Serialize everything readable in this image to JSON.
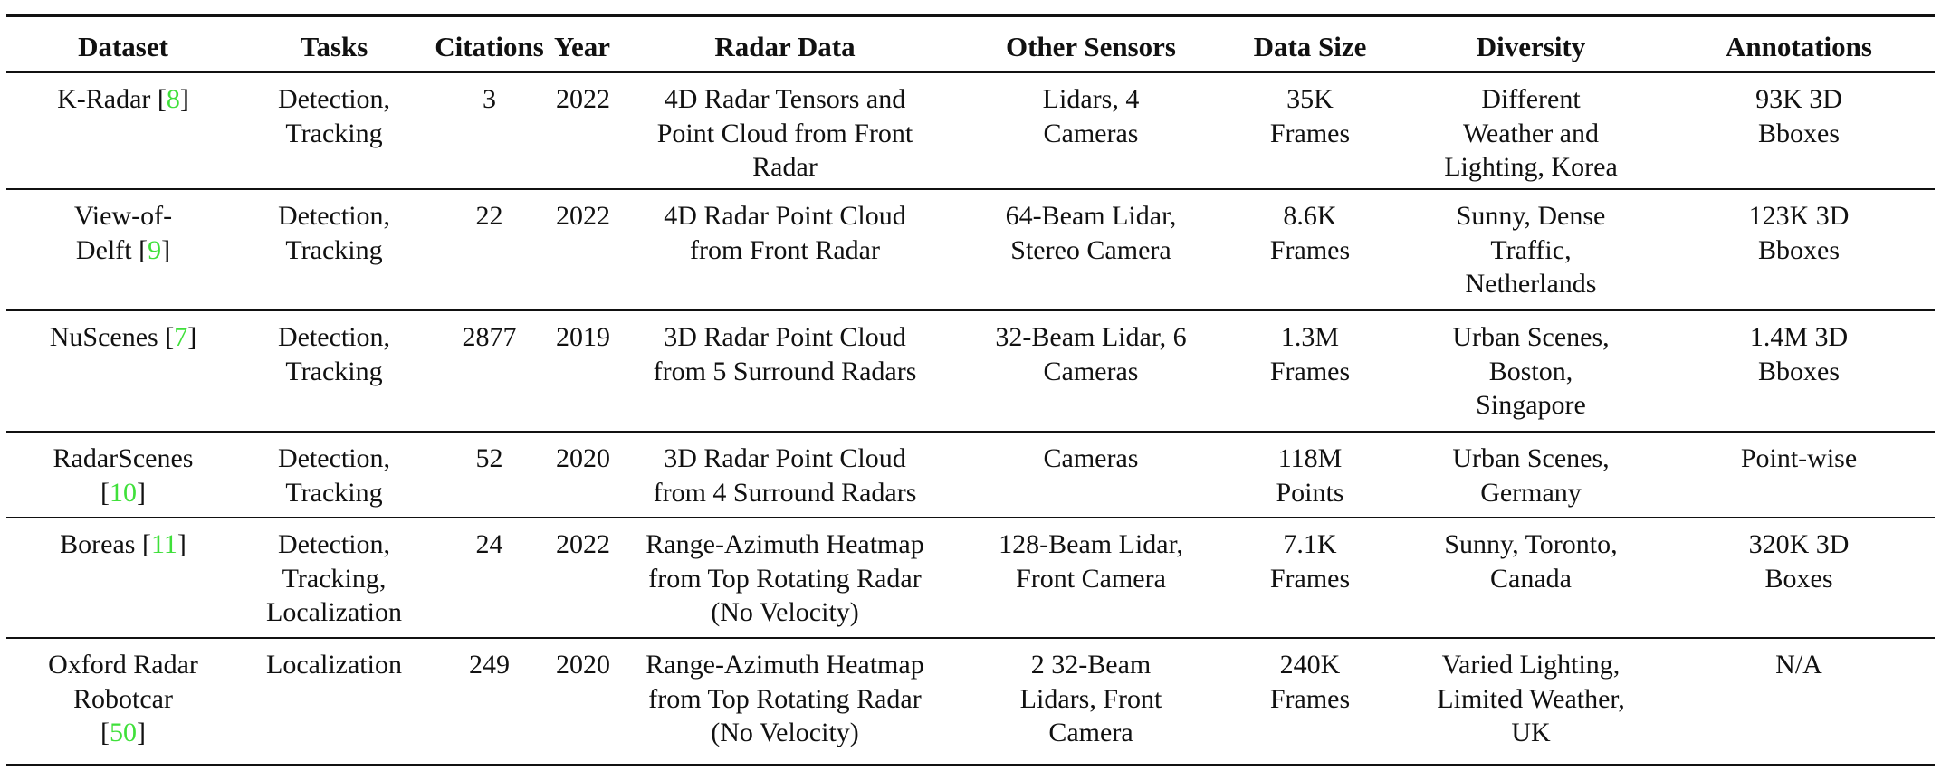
{
  "table": {
    "headers": [
      "Dataset",
      "Tasks",
      "Citations",
      "Year",
      "Radar Data",
      "Other Sensors",
      "Data Size",
      "Diversity",
      "Annotations"
    ],
    "rows": [
      {
        "dataset": [
          "K-Radar "
        ],
        "ref": "8",
        "tasks": [
          "Detection,",
          "Tracking"
        ],
        "citations": "3",
        "year": "2022",
        "radar": [
          "4D Radar Tensors and",
          "Point Cloud from Front",
          "Radar"
        ],
        "other": [
          "Lidars, 4",
          "Cameras"
        ],
        "size": [
          "35K",
          "Frames"
        ],
        "diversity": [
          "Different",
          "Weather and",
          "Lighting, Korea"
        ],
        "annotations": [
          "93K 3D",
          "Bboxes"
        ]
      },
      {
        "dataset": [
          "View-of-",
          "Delft "
        ],
        "ref": "9",
        "tasks": [
          "Detection,",
          "Tracking"
        ],
        "citations": "22",
        "year": "2022",
        "radar": [
          "4D Radar Point Cloud",
          "from Front Radar"
        ],
        "other": [
          "64-Beam Lidar,",
          "Stereo Camera"
        ],
        "size": [
          "8.6K",
          "Frames"
        ],
        "diversity": [
          "Sunny, Dense",
          "Traffic,",
          "Netherlands"
        ],
        "annotations": [
          "123K 3D",
          "Bboxes"
        ]
      },
      {
        "dataset": [
          "NuScenes "
        ],
        "ref": "7",
        "tasks": [
          "Detection,",
          "Tracking"
        ],
        "citations": "2877",
        "year": "2019",
        "radar": [
          "3D Radar Point Cloud",
          "from 5 Surround Radars"
        ],
        "other": [
          "32-Beam Lidar, 6",
          "Cameras"
        ],
        "size": [
          "1.3M",
          "Frames"
        ],
        "diversity": [
          "Urban Scenes,",
          "Boston,",
          "Singapore"
        ],
        "annotations": [
          "1.4M 3D",
          "Bboxes"
        ]
      },
      {
        "dataset": [
          "RadarScenes",
          ""
        ],
        "ref": "10",
        "tasks": [
          "Detection,",
          "Tracking"
        ],
        "citations": "52",
        "year": "2020",
        "radar": [
          "3D Radar Point Cloud",
          "from 4 Surround Radars"
        ],
        "other": [
          "Cameras"
        ],
        "size": [
          "118M",
          "Points"
        ],
        "diversity": [
          "Urban Scenes,",
          "Germany"
        ],
        "annotations": [
          "Point-wise"
        ]
      },
      {
        "dataset": [
          "Boreas "
        ],
        "ref": "11",
        "tasks": [
          "Detection,",
          "Tracking,",
          "Localization"
        ],
        "citations": "24",
        "year": "2022",
        "radar": [
          "Range-Azimuth Heatmap",
          "from Top Rotating Radar",
          "(No Velocity)"
        ],
        "other": [
          "128-Beam Lidar,",
          "Front Camera"
        ],
        "size": [
          "7.1K",
          "Frames"
        ],
        "diversity": [
          "Sunny, Toronto,",
          "Canada"
        ],
        "annotations": [
          "320K 3D",
          "Boxes"
        ]
      },
      {
        "dataset": [
          "Oxford Radar",
          "Robotcar",
          ""
        ],
        "ref": "50",
        "tasks": [
          "Localization"
        ],
        "citations": "249",
        "year": "2020",
        "radar": [
          "Range-Azimuth Heatmap",
          "from Top Rotating Radar",
          "(No Velocity)"
        ],
        "other": [
          "2 32-Beam",
          "Lidars, Front",
          "Camera"
        ],
        "size": [
          "240K",
          "Frames"
        ],
        "diversity": [
          "Varied Lighting,",
          "Limited Weather,",
          "UK"
        ],
        "annotations": [
          "N/A"
        ]
      }
    ]
  }
}
